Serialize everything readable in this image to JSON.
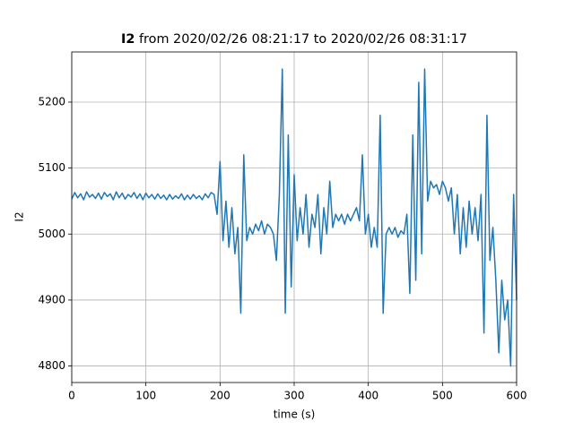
{
  "chart_data": {
    "type": "line",
    "title_bold": "I2",
    "title": "from 2020/02/26 08:21:17 to 2020/02/26 08:31:17",
    "x_label": "time (s)",
    "y_label": "I2",
    "xlim": [
      0,
      600
    ],
    "xticks": [
      0,
      100,
      200,
      300,
      400,
      500,
      600
    ],
    "ylim": [
      4775,
      5276
    ],
    "yticks": [
      4800,
      4900,
      5000,
      5100,
      5200
    ],
    "grid": true,
    "x": [
      0,
      4,
      8,
      12,
      16,
      20,
      24,
      28,
      32,
      36,
      40,
      44,
      48,
      52,
      56,
      60,
      64,
      68,
      72,
      76,
      80,
      84,
      88,
      92,
      96,
      100,
      104,
      108,
      112,
      116,
      120,
      124,
      128,
      132,
      136,
      140,
      144,
      148,
      152,
      156,
      160,
      164,
      168,
      172,
      176,
      180,
      184,
      188,
      192,
      196,
      200,
      204,
      208,
      212,
      216,
      220,
      224,
      228,
      232,
      236,
      240,
      244,
      248,
      252,
      256,
      260,
      264,
      268,
      272,
      276,
      280,
      284,
      288,
      292,
      296,
      300,
      304,
      308,
      312,
      316,
      320,
      324,
      328,
      332,
      336,
      340,
      344,
      348,
      352,
      356,
      360,
      364,
      368,
      372,
      376,
      380,
      384,
      388,
      392,
      396,
      400,
      404,
      408,
      412,
      416,
      420,
      424,
      428,
      432,
      436,
      440,
      444,
      448,
      452,
      456,
      460,
      464,
      468,
      472,
      476,
      480,
      484,
      488,
      492,
      496,
      500,
      504,
      508,
      512,
      516,
      520,
      524,
      528,
      532,
      536,
      540,
      544,
      548,
      552,
      556,
      560,
      564,
      568,
      572,
      576,
      580,
      584,
      588,
      592,
      596,
      600
    ],
    "series": [
      {
        "color": "#1f77b4",
        "values": [
          5053,
          5063,
          5055,
          5061,
          5052,
          5064,
          5056,
          5060,
          5054,
          5062,
          5053,
          5063,
          5057,
          5061,
          5052,
          5064,
          5055,
          5062,
          5053,
          5060,
          5056,
          5063,
          5054,
          5061,
          5052,
          5062,
          5055,
          5060,
          5053,
          5061,
          5054,
          5059,
          5052,
          5060,
          5053,
          5058,
          5054,
          5061,
          5052,
          5059,
          5053,
          5060,
          5054,
          5058,
          5052,
          5061,
          5055,
          5063,
          5060,
          5030,
          5110,
          4990,
          5050,
          4980,
          5040,
          4970,
          5010,
          4880,
          5120,
          4990,
          5010,
          5000,
          5015,
          5005,
          5020,
          5000,
          5015,
          5010,
          5000,
          4960,
          5060,
          5250,
          4880,
          5150,
          4920,
          5090,
          4990,
          5040,
          5000,
          5060,
          4980,
          5030,
          5010,
          5060,
          4970,
          5040,
          5000,
          5080,
          5010,
          5030,
          5020,
          5030,
          5015,
          5030,
          5020,
          5030,
          5040,
          5020,
          5120,
          5000,
          5030,
          4980,
          5010,
          4980,
          5180,
          4880,
          5000,
          5010,
          5000,
          5010,
          4995,
          5005,
          5000,
          5030,
          4910,
          5150,
          4930,
          5230,
          4970,
          5250,
          5050,
          5080,
          5070,
          5075,
          5060,
          5080,
          5070,
          5050,
          5070,
          5000,
          5060,
          4970,
          5040,
          4980,
          5050,
          5000,
          5040,
          4990,
          5060,
          4850,
          5180,
          4960,
          5010,
          4930,
          4820,
          4930,
          4870,
          4900,
          4800,
          5060,
          4900
        ]
      }
    ]
  }
}
